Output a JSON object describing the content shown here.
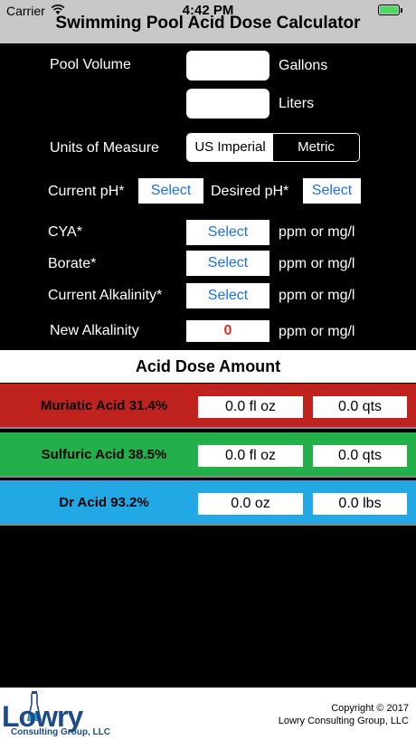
{
  "status_bar": {
    "carrier": "Carrier",
    "time": "4:42 PM",
    "battery_level": 1.0
  },
  "app": {
    "title": "Swimming Pool Acid Dose Calculator"
  },
  "form": {
    "pool_volume_label": "Pool Volume",
    "gallons_value": "",
    "gallons_unit": "Gallons",
    "liters_value": "",
    "liters_unit": "Liters",
    "units_label": "Units of Measure",
    "units_options": [
      "US Imperial",
      "Metric"
    ],
    "units_selected": "US Imperial",
    "current_ph_label": "Current pH*",
    "current_ph_button": "Select",
    "desired_ph_label": "Desired pH*",
    "desired_ph_button": "Select",
    "cya_label": "CYA*",
    "cya_button": "Select",
    "cya_unit": "ppm or mg/l",
    "borate_label": "Borate*",
    "borate_button": "Select",
    "borate_unit": "ppm or mg/l",
    "alkalinity_label": "Current Alkalinity*",
    "alkalinity_button": "Select",
    "alkalinity_unit": "ppm or mg/l",
    "new_alkalinity_label": "New Alkalinity",
    "new_alkalinity_value": "0",
    "new_alkalinity_unit": "ppm or mg/l"
  },
  "results": {
    "header": "Acid Dose Amount",
    "acids": [
      {
        "name": "Muriatic Acid 31.4%",
        "value1": "0.0 fl oz",
        "value2": "0.0 qts",
        "color": "#c0231e"
      },
      {
        "name": "Sulfuric Acid 38.5%",
        "value1": "0.0 fl oz",
        "value2": "0.0 qts",
        "color": "#23b04a"
      },
      {
        "name": "Dr Acid 93.2%",
        "value1": "0.0 oz",
        "value2": "0.0 lbs",
        "color": "#22a8e4"
      }
    ]
  },
  "footer": {
    "logo_word": "Lowry",
    "logo_sub": "Consulting Group, LLC",
    "copyright_line1": "Copyright © 2017",
    "copyright_line2": "Lowry Consulting Group, LLC"
  },
  "colors": {
    "accent_blue": "#1a73e8",
    "alert_red": "#e03020",
    "logo_blue": "#1d4b86",
    "battery_green": "#4cd964"
  }
}
